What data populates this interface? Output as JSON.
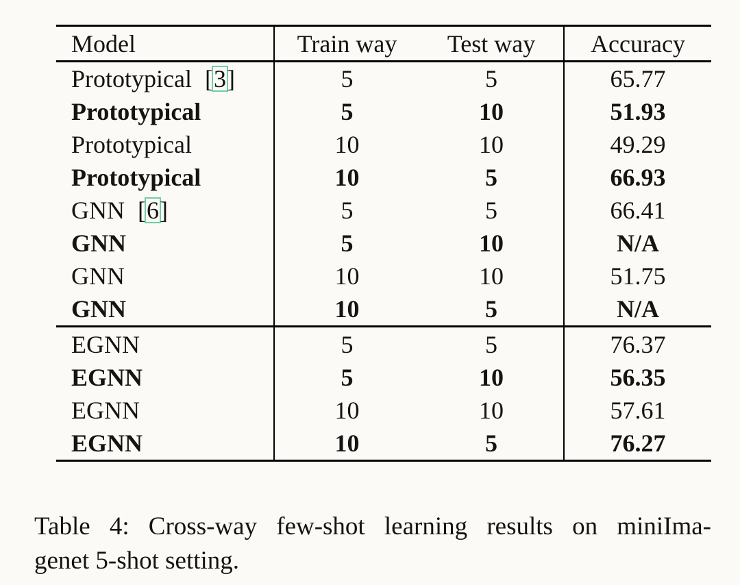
{
  "page": {
    "background_color": "#fbfaf7",
    "text_color": "#161412",
    "rule_color": "#000000",
    "citation_box_color": "#6fcf9f"
  },
  "table": {
    "headers": {
      "model": "Model",
      "train": "Train way",
      "test": "Test way",
      "acc": "Accuracy"
    },
    "cite": {
      "open": "[",
      "close": "]"
    },
    "rows": [
      {
        "model": "Prototypical",
        "cite": "3",
        "bold": false,
        "train": "5",
        "test": "5",
        "acc": "65.77"
      },
      {
        "model": "Prototypical",
        "cite": "",
        "bold": true,
        "train": "5",
        "test": "10",
        "acc": "51.93"
      },
      {
        "model": "Prototypical",
        "cite": "",
        "bold": false,
        "train": "10",
        "test": "10",
        "acc": "49.29"
      },
      {
        "model": "Prototypical",
        "cite": "",
        "bold": true,
        "train": "10",
        "test": "5",
        "acc": "66.93"
      },
      {
        "model": "GNN",
        "cite": "6",
        "bold": false,
        "train": "5",
        "test": "5",
        "acc": "66.41"
      },
      {
        "model": "GNN",
        "cite": "",
        "bold": true,
        "train": "5",
        "test": "10",
        "acc": "N/A"
      },
      {
        "model": "GNN",
        "cite": "",
        "bold": false,
        "train": "10",
        "test": "10",
        "acc": "51.75"
      },
      {
        "model": "GNN",
        "cite": "",
        "bold": true,
        "train": "10",
        "test": "5",
        "acc": "N/A"
      },
      {
        "model": "EGNN",
        "cite": "",
        "bold": false,
        "train": "5",
        "test": "5",
        "acc": "76.37"
      },
      {
        "model": "EGNN",
        "cite": "",
        "bold": true,
        "train": "5",
        "test": "10",
        "acc": "56.35"
      },
      {
        "model": "EGNN",
        "cite": "",
        "bold": false,
        "train": "10",
        "test": "10",
        "acc": "57.61"
      },
      {
        "model": "EGNN",
        "cite": "",
        "bold": true,
        "train": "10",
        "test": "5",
        "acc": "76.27"
      }
    ]
  },
  "chart_data": {
    "type": "table",
    "title": "Table 4: Cross-way few-shot learning results on miniImagenet 5-shot setting.",
    "columns": [
      "Model",
      "Train way",
      "Test way",
      "Accuracy"
    ],
    "rows": [
      [
        "Prototypical [3]",
        5,
        5,
        65.77
      ],
      [
        "Prototypical",
        5,
        10,
        51.93
      ],
      [
        "Prototypical",
        10,
        10,
        49.29
      ],
      [
        "Prototypical",
        10,
        5,
        66.93
      ],
      [
        "GNN [6]",
        5,
        5,
        66.41
      ],
      [
        "GNN",
        5,
        10,
        null
      ],
      [
        "GNN",
        10,
        10,
        51.75
      ],
      [
        "GNN",
        10,
        5,
        null
      ],
      [
        "EGNN",
        5,
        5,
        76.37
      ],
      [
        "EGNN",
        5,
        10,
        56.35
      ],
      [
        "EGNN",
        10,
        10,
        57.61
      ],
      [
        "EGNN",
        10,
        5,
        76.27
      ]
    ]
  },
  "caption": {
    "line1": "Table 4: Cross-way few-shot learning results on miniIma-",
    "line2": "genet 5-shot setting."
  }
}
